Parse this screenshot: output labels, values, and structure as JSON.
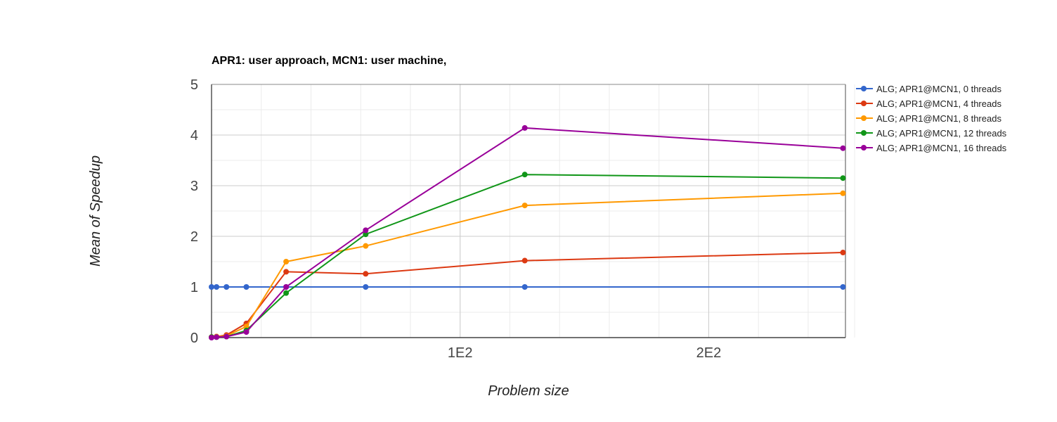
{
  "chart_data": {
    "type": "line",
    "title": "APR1: user approach, MCN1: user machine,",
    "xlabel": "Problem size",
    "ylabel": "Mean of Speedup",
    "xlim": [
      0,
      255
    ],
    "ylim": [
      0,
      5
    ],
    "x_ticks": [
      {
        "value": 100,
        "label": "1E2"
      },
      {
        "value": 200,
        "label": "2E2"
      }
    ],
    "y_ticks": [
      0,
      1,
      2,
      3,
      4,
      5
    ],
    "grid": true,
    "legend_position": "right",
    "x": [
      0,
      2,
      6,
      14,
      30,
      62,
      126,
      254
    ],
    "series": [
      {
        "name": "ALG; APR1@MCN1, 0 threads",
        "color": "#3366cc",
        "values": [
          1.0,
          1.0,
          1.0,
          1.0,
          1.0,
          1.0,
          1.0,
          1.0
        ]
      },
      {
        "name": "ALG; APR1@MCN1, 4 threads",
        "color": "#dc3912",
        "values": [
          0.01,
          0.02,
          0.05,
          0.28,
          1.3,
          1.26,
          1.52,
          1.68
        ]
      },
      {
        "name": "ALG; APR1@MCN1, 8 threads",
        "color": "#ff9900",
        "values": [
          0.01,
          0.02,
          0.03,
          0.22,
          1.5,
          1.81,
          2.61,
          2.85
        ]
      },
      {
        "name": "ALG; APR1@MCN1, 12 threads",
        "color": "#109618",
        "values": [
          0.01,
          0.01,
          0.02,
          0.14,
          0.88,
          2.04,
          3.22,
          3.15
        ]
      },
      {
        "name": "ALG; APR1@MCN1, 16 threads",
        "color": "#990099",
        "values": [
          0.0,
          0.01,
          0.02,
          0.11,
          1.0,
          2.12,
          4.14,
          3.74
        ]
      }
    ]
  }
}
